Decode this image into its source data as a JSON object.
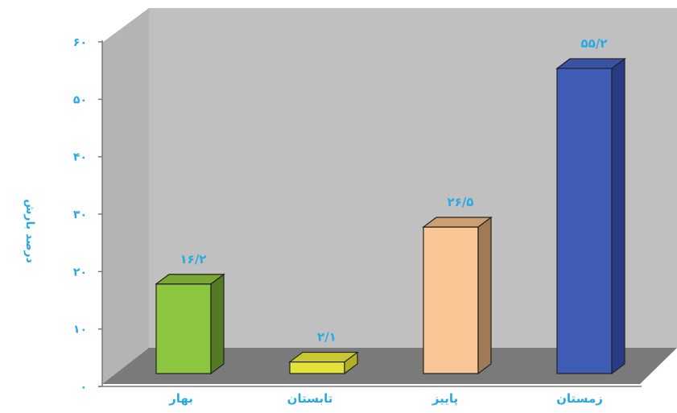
{
  "chart_data": {
    "type": "bar",
    "title": "",
    "xlabel": "",
    "ylabel": "درصد بارش",
    "categories": [
      "بهار",
      "تابستان",
      "پاییز",
      "زمستان"
    ],
    "values": [
      16.2,
      2.1,
      26.5,
      55.2
    ],
    "value_labels": [
      "۱۶/۲",
      "۲/۱",
      "۲۶/۵",
      "۵۵/۲"
    ],
    "ylim": [
      0,
      60
    ],
    "y_ticks": [
      0,
      10,
      20,
      30,
      40,
      50,
      60
    ],
    "y_tick_labels": [
      "۰",
      "۱۰",
      "۲۰",
      "۳۰",
      "۴۰",
      "۵۰",
      "۶۰"
    ],
    "grid": false,
    "legend": "none",
    "colors": [
      "#8cc63e",
      "#e2e23a",
      "#f9c795",
      "#3f5db5"
    ],
    "side_colors": [
      "#567a23",
      "#b0b022",
      "#a07a55",
      "#263d85"
    ],
    "top_colors": [
      "#7aa632",
      "#c8c830",
      "#cc9e70",
      "#3a52a5"
    ],
    "wall_color": "#c0c0c0",
    "floor_color": "#7a7a7a",
    "text_color": "#29a9e1"
  }
}
